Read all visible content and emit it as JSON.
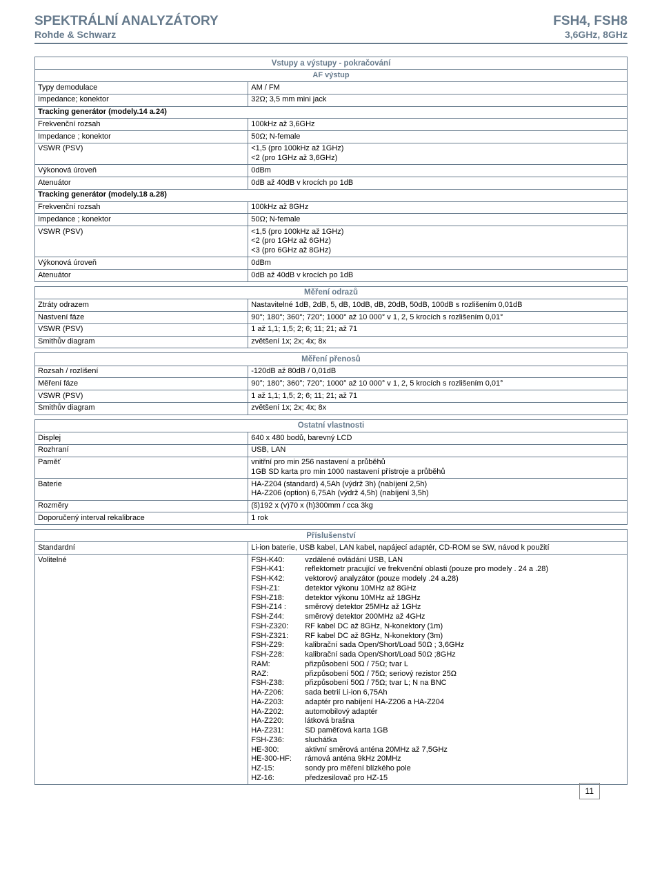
{
  "header": {
    "titleLeft": "SPEKTRÁLNÍ ANALYZÁTORY",
    "subLeft": "Rohde & Schwarz",
    "titleRight": "FSH4, FSH8",
    "subRight": "3,6GHz, 8GHz"
  },
  "io": {
    "section": "Vstupy a výstupy - pokračování",
    "afHeader": "AF výstup",
    "rows": [
      {
        "label": "Typy demodulace",
        "value": "AM / FM"
      },
      {
        "label": "Impedance; konektor",
        "value": "32Ω; 3,5 mm mini jack"
      }
    ],
    "trk14": {
      "label": "Tracking generátor (modely.14 a.24)"
    },
    "trk14rows": [
      {
        "label": "Frekvenční rozsah",
        "value": "100kHz až 3,6GHz"
      },
      {
        "label": "Impedance ; konektor",
        "value": "50Ω; N-female"
      },
      {
        "label": "VSWR (PSV)",
        "value": "<1,5 (pro 100kHz až 1GHz)\n<2 (pro 1GHz až 3,6GHz)"
      },
      {
        "label": "Výkonová úroveň",
        "value": "0dBm"
      },
      {
        "label": "Atenuátor",
        "value": "0dB až 40dB v krocích po 1dB"
      }
    ],
    "trk18": {
      "label": "Tracking generátor (modely.18 a.28)"
    },
    "trk18rows": [
      {
        "label": "Frekvenční rozsah",
        "value": "100kHz až 8GHz"
      },
      {
        "label": "Impedance ; konektor",
        "value": "50Ω; N-female"
      },
      {
        "label": "VSWR (PSV)",
        "value": "<1,5 (pro 100kHz až 1GHz)\n<2 (pro 1GHz až 6GHz)\n<3 (pro 6GHz až 8GHz)"
      },
      {
        "label": "Výkonová úroveň",
        "value": "0dBm"
      },
      {
        "label": "Atenuátor",
        "value": "0dB až 40dB v krocích po 1dB"
      }
    ]
  },
  "reflection": {
    "section": "Měření odrazů",
    "rows": [
      {
        "label": "Ztráty odrazem",
        "value": "Nastavitelné 1dB, 2dB, 5, dB, 10dB, dB, 20dB, 50dB, 100dB s rozlišením 0,01dB"
      },
      {
        "label": "Nastvení fáze",
        "value": "90°; 180°; 360°; 720°; 1000° až 10 000° v 1, 2, 5 krocích s rozlišením 0,01°"
      },
      {
        "label": "VSWR (PSV)",
        "value": "1 až 1,1; 1,5; 2; 6; 11; 21; až 71"
      },
      {
        "label": "Smithův diagram",
        "value": "zvětšení 1x; 2x; 4x; 8x"
      }
    ]
  },
  "transmission": {
    "section": "Měření přenosů",
    "rows": [
      {
        "label": "Rozsah / rozlišení",
        "value": "-120dB až 80dB / 0,01dB"
      },
      {
        "label": "Měření fáze",
        "value": "90°; 180°; 360°; 720°; 1000° až 10 000° v 1, 2, 5 krocích s rozlišením 0,01°"
      },
      {
        "label": "VSWR (PSV)",
        "value": "1 až 1,1; 1,5; 2; 6; 11; 21; až 71"
      },
      {
        "label": "Smithův diagram",
        "value": "zvětšení 1x; 2x; 4x; 8x"
      }
    ]
  },
  "other": {
    "section": "Ostatní vlastnosti",
    "rows": [
      {
        "label": "Displej",
        "value": "640 x 480 bodů, barevný LCD"
      },
      {
        "label": "Rozhraní",
        "value": "USB, LAN"
      },
      {
        "label": "Paměť",
        "value": "vnitřní pro min 256 nastavení a průběhů\n1GB SD karta pro min 1000 nastavení přístroje a průběhů"
      },
      {
        "label": "Baterie",
        "value": "HA-Z204 (standard) 4,5Ah (výdrž 3h) (nabíjení 2,5h)\nHA-Z206 (option) 6,75Ah (výdrž 4,5h) (nabíjení 3,5h)"
      },
      {
        "label": "Rozměry",
        "value": "(š)192 x (v)70 x (h)300mm / cca 3kg"
      },
      {
        "label": "Doporučený interval rekalibrace",
        "value": "1 rok"
      }
    ]
  },
  "accessories": {
    "section": "Příslušenství",
    "standardLabel": "Standardní",
    "standardValue": "Li-ion baterie, USB kabel, LAN kabel, napájecí adaptér, CD-ROM se SW, návod k použití",
    "optionalLabel": "Volitelné",
    "items": [
      {
        "code": "FSH-K40:",
        "desc": "vzdálené ovládání USB, LAN"
      },
      {
        "code": "FSH-K41:",
        "desc": "reflektometr pracující ve frekvenční oblasti (pouze pro modely . 24 a .28)"
      },
      {
        "code": "FSH-K42:",
        "desc": "vektorový analyzátor (pouze modely .24 a.28)"
      },
      {
        "code": "FSH-Z1:",
        "desc": "detektor výkonu 10MHz až 8GHz"
      },
      {
        "code": "FSH-Z18:",
        "desc": "detektor výkonu 10MHz až 18GHz"
      },
      {
        "code": "FSH-Z14 :",
        "desc": "směrový detektor 25MHz až 1GHz"
      },
      {
        "code": "FSH-Z44:",
        "desc": "směrový detektor 200MHz až 4GHz"
      },
      {
        "code": "FSH-Z320:",
        "desc": "RF kabel DC až 8GHz, N-konektory (1m)"
      },
      {
        "code": "FSH-Z321:",
        "desc": "RF kabel DC až 8GHz, N-konektory (3m)"
      },
      {
        "code": "FSH-Z29:",
        "desc": "kalibrační sada Open/Short/Load 50Ω ; 3,6GHz"
      },
      {
        "code": "FSH-Z28:",
        "desc": "kalibrační sada Open/Short/Load 50Ω ;8GHz"
      },
      {
        "code": "RAM:",
        "desc": "přizpůsobení 50Ω / 75Ω; tvar L"
      },
      {
        "code": "RAZ:",
        "desc": "přizpůsobení 50Ω / 75Ω; seriový rezistor 25Ω"
      },
      {
        "code": "FSH-Z38:",
        "desc": "přizpůsobení 50Ω / 75Ω; tvar L; N na BNC"
      },
      {
        "code": "HA-Z206:",
        "desc": "sada betrií Li-ion 6,75Ah"
      },
      {
        "code": "HA-Z203:",
        "desc": "adaptér pro nabíjení HA-Z206 a HA-Z204"
      },
      {
        "code": "HA-Z202:",
        "desc": "automobilový adaptér"
      },
      {
        "code": "HA-Z220:",
        "desc": "látková brašna"
      },
      {
        "code": "HA-Z231:",
        "desc": "SD paměťová karta 1GB"
      },
      {
        "code": "FSH-Z36:",
        "desc": "sluchátka"
      },
      {
        "code": "HE-300:",
        "desc": "aktivní směrová anténa 20MHz až 7,5GHz"
      },
      {
        "code": "HE-300-HF:",
        "desc": "rámová anténa 9kHz 20MHz"
      },
      {
        "code": "HZ-15:",
        "desc": "sondy pro měření blízkého pole"
      },
      {
        "code": "HZ-16:",
        "desc": "předzesilovač pro HZ-15"
      }
    ]
  },
  "pageNumber": "11"
}
